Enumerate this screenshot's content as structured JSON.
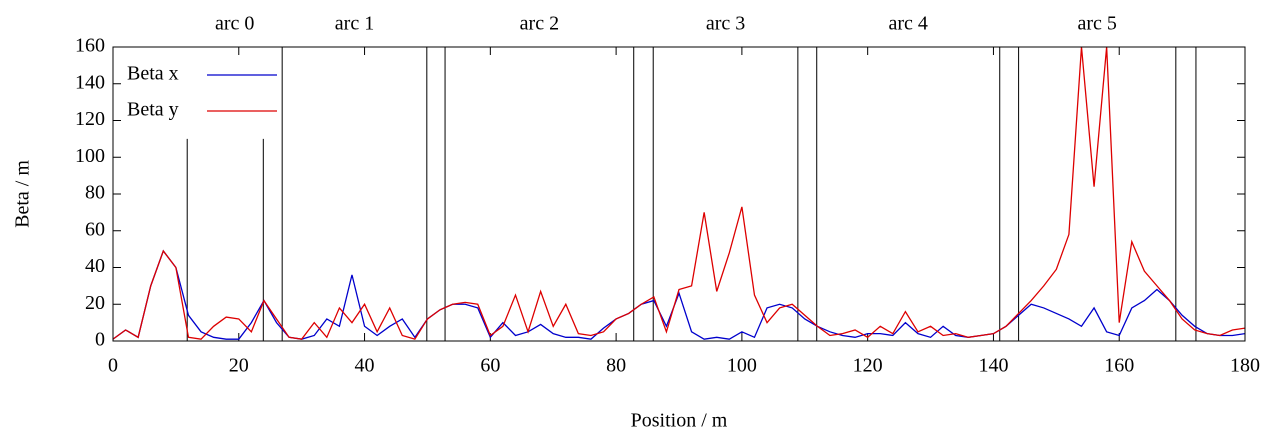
{
  "chart_data": {
    "type": "line",
    "xlabel": "Position / m",
    "ylabel": "Beta / m",
    "xlim": [
      0,
      180
    ],
    "xticks": [
      0,
      20,
      40,
      60,
      80,
      100,
      120,
      140,
      160,
      180
    ],
    "ylim": [
      0,
      160
    ],
    "yticks": [
      0,
      20,
      40,
      60,
      80,
      100,
      120,
      140,
      160
    ],
    "legend": "upper left",
    "x": [
      0,
      2,
      4,
      6,
      8,
      10,
      12,
      14,
      16,
      18,
      20,
      22,
      24,
      26,
      28,
      30,
      32,
      34,
      36,
      38,
      40,
      42,
      44,
      46,
      48,
      50,
      52,
      54,
      56,
      58,
      60,
      62,
      64,
      66,
      68,
      70,
      72,
      74,
      76,
      78,
      80,
      82,
      84,
      86,
      88,
      90,
      92,
      94,
      96,
      98,
      100,
      102,
      104,
      106,
      108,
      110,
      112,
      114,
      116,
      118,
      120,
      122,
      124,
      126,
      128,
      130,
      132,
      134,
      136,
      138,
      140,
      142,
      144,
      146,
      148,
      150,
      152,
      154,
      156,
      158,
      160,
      162,
      164,
      166,
      168,
      170,
      172,
      174,
      176,
      178,
      180
    ],
    "series": [
      {
        "name": "Beta x",
        "color": "#0000cc",
        "values": [
          1,
          6,
          2,
          30,
          49,
          40,
          14,
          5,
          2,
          1,
          1,
          10,
          22,
          10,
          2,
          1,
          3,
          12,
          8,
          36,
          8,
          3,
          8,
          12,
          2,
          12,
          17,
          20,
          20,
          18,
          2,
          10,
          3,
          5,
          9,
          4,
          2,
          2,
          1,
          7,
          12,
          15,
          20,
          22,
          8,
          26,
          5,
          1,
          2,
          1,
          5,
          2,
          18,
          20,
          18,
          12,
          8,
          5,
          3,
          2,
          4,
          4,
          3,
          10,
          4,
          2,
          8,
          3,
          2,
          3,
          4,
          8,
          14,
          20,
          18,
          15,
          12,
          8,
          18,
          5,
          3,
          18,
          22,
          28,
          22,
          14,
          8,
          4,
          3,
          3,
          4
        ]
      },
      {
        "name": "Beta y",
        "color": "#dd0000",
        "values": [
          1,
          6,
          2,
          30,
          49,
          40,
          2,
          1,
          8,
          13,
          12,
          5,
          22,
          12,
          2,
          1,
          10,
          2,
          18,
          10,
          20,
          5,
          18,
          3,
          1,
          12,
          17,
          20,
          21,
          20,
          3,
          8,
          25,
          5,
          27,
          8,
          20,
          4,
          3,
          5,
          12,
          15,
          20,
          24,
          5,
          28,
          30,
          70,
          27,
          48,
          73,
          25,
          10,
          18,
          20,
          14,
          8,
          3,
          4,
          6,
          2,
          8,
          4,
          16,
          5,
          8,
          3,
          4,
          2,
          3,
          4,
          8,
          15,
          22,
          30,
          39,
          58,
          160,
          84,
          160,
          10,
          54,
          38,
          30,
          22,
          12,
          6,
          4,
          3,
          6,
          7
        ]
      }
    ],
    "vlines": [
      {
        "x": 11.8,
        "top": 110
      },
      {
        "x": 23.9,
        "top": 110
      },
      {
        "x": 26.9,
        "top": 160
      },
      {
        "x": 49.9,
        "top": 160
      },
      {
        "x": 52.8,
        "top": 160
      },
      {
        "x": 82.8,
        "top": 160
      },
      {
        "x": 85.9,
        "top": 160
      },
      {
        "x": 108.9,
        "top": 160
      },
      {
        "x": 111.9,
        "top": 160
      },
      {
        "x": 141,
        "top": 160
      },
      {
        "x": 144,
        "top": 160
      },
      {
        "x": 169,
        "top": 160
      },
      {
        "x": 172.2,
        "top": 160
      }
    ],
    "arcs": [
      {
        "label": "arc 0",
        "start": 11.8,
        "end": 26.9
      },
      {
        "label": "arc 1",
        "start": 26.9,
        "end": 49.9
      },
      {
        "label": "arc 2",
        "start": 52.8,
        "end": 82.8
      },
      {
        "label": "arc 3",
        "start": 85.9,
        "end": 108.9
      },
      {
        "label": "arc 4",
        "start": 111.9,
        "end": 141
      },
      {
        "label": "arc 5",
        "start": 144,
        "end": 169
      }
    ]
  }
}
